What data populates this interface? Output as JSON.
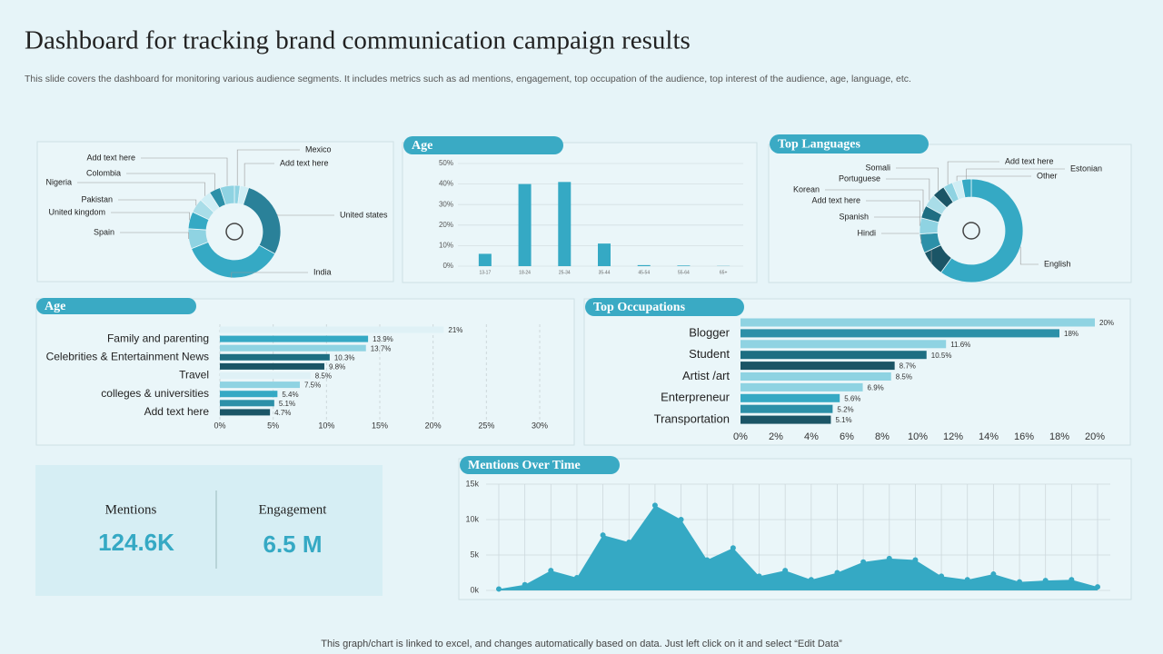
{
  "header": {
    "title": "Dashboard for tracking brand communication campaign results",
    "subtitle": "This slide covers the dashboard for monitoring various audience segments. It includes metrics such as ad mentions, engagement, top occupation of the audience, top interest of the audience, age, language, etc."
  },
  "chart_data": [
    {
      "type": "pie",
      "donut": true,
      "categories": [
        "Mexico",
        "Add text here",
        "United states",
        "India",
        "Spain",
        "United kingdom",
        "Pakistan",
        "Nigeria",
        "Colombia",
        "Add text here"
      ],
      "values": [
        2,
        3,
        28,
        36,
        7,
        6,
        5,
        4,
        4,
        5
      ],
      "colors": [
        "#8fd3e2",
        "#cfeef5",
        "#2a8199",
        "#35a9c4",
        "#8fd3e2",
        "#35a9c4",
        "#a9dde8",
        "#cfeef5",
        "#2c90a8",
        "#8fd3e2"
      ]
    },
    {
      "type": "bar",
      "title": "Age",
      "categories": [
        "13-17",
        "18-24",
        "25-34",
        "35-44",
        "45-54",
        "55-64",
        "65+"
      ],
      "values": [
        6,
        40,
        41,
        11,
        0.5,
        0.3,
        0.1
      ],
      "color": "#35a9c4",
      "ylim": [
        0,
        50
      ],
      "yticks": [
        {
          "value": 0,
          "label": "0%"
        },
        {
          "value": 10,
          "label": "10%"
        },
        {
          "value": 20,
          "label": "20%"
        },
        {
          "value": 30,
          "label": "30%"
        },
        {
          "value": 40,
          "label": "40%"
        },
        {
          "value": 50,
          "label": "50%"
        }
      ],
      "grid": true
    },
    {
      "type": "pie",
      "donut": true,
      "title": "Top Languages",
      "categories": [
        "English",
        "Hindi",
        "Spanish",
        "Add text here",
        "Korean",
        "Portuguese",
        "Somali",
        "Add text here",
        "Other",
        "Estonian"
      ],
      "values": [
        60,
        8,
        6,
        5,
        4,
        4,
        4,
        3,
        3,
        3
      ],
      "colors": [
        "#35a9c4",
        "#1b5566",
        "#2c90a8",
        "#8fd3e2",
        "#1e6e82",
        "#a9dde8",
        "#1b5566",
        "#8fd3e2",
        "#cfeef5",
        "#35a9c4"
      ]
    },
    {
      "type": "hbar",
      "title": "Age",
      "categories": [
        null,
        "Family and parenting",
        null,
        "Celebrities & Entertainment News",
        null,
        "Travel",
        null,
        "colleges & universities",
        null,
        "Add text here"
      ],
      "values": [
        21,
        13.9,
        13.7,
        10.3,
        9.8,
        8.5,
        7.5,
        5.4,
        5.1,
        4.7
      ],
      "value_labels": [
        "21%",
        "13.9%",
        "13.7%",
        "10.3%",
        "9.8%",
        "8.5%",
        "7.5%",
        "5.4%",
        "5.1%",
        "4.7%"
      ],
      "colors": [
        "#dff1f6",
        "#35a9c4",
        "#8fd3e2",
        "#1e6e82",
        "#1b5566",
        "#dff1f6",
        "#8fd3e2",
        "#35a9c4",
        "#2c90a8",
        "#1b5566"
      ],
      "xlim": [
        0,
        30
      ],
      "xticks": [
        {
          "value": 0,
          "label": "0%"
        },
        {
          "value": 5,
          "label": "5%"
        },
        {
          "value": 10,
          "label": "10%"
        },
        {
          "value": 15,
          "label": "15%"
        },
        {
          "value": 20,
          "label": "20%"
        },
        {
          "value": 25,
          "label": "25%"
        },
        {
          "value": 30,
          "label": "30%"
        }
      ],
      "grid": true
    },
    {
      "type": "hbar",
      "title": "Top Occupations",
      "categories": [
        null,
        "Blogger",
        null,
        "Student",
        null,
        "Artist /art",
        null,
        "Enterpreneur",
        null,
        "Transportation"
      ],
      "values": [
        20,
        18,
        11.6,
        10.5,
        8.7,
        8.5,
        6.9,
        5.6,
        5.2,
        5.1
      ],
      "value_labels": [
        "20%",
        "18%",
        "11.6%",
        "10.5%",
        "8.7%",
        "8.5%",
        "6.9%",
        "5.6%",
        "5.2%",
        "5.1%"
      ],
      "colors": [
        "#8fd3e2",
        "#2c90a8",
        "#8fd3e2",
        "#1e6e82",
        "#1b5566",
        "#8fd3e2",
        "#8fd3e2",
        "#35a9c4",
        "#2c90a8",
        "#1b5566"
      ],
      "xlim": [
        0,
        20
      ],
      "xticks": [
        {
          "value": 0,
          "label": "0%"
        },
        {
          "value": 2,
          "label": "2%"
        },
        {
          "value": 4,
          "label": "4%"
        },
        {
          "value": 6,
          "label": "6%"
        },
        {
          "value": 8,
          "label": "8%"
        },
        {
          "value": 10,
          "label": "10%"
        },
        {
          "value": 12,
          "label": "12%"
        },
        {
          "value": 14,
          "label": "14%"
        },
        {
          "value": 16,
          "label": "16%"
        },
        {
          "value": 18,
          "label": "18%"
        },
        {
          "value": 20,
          "label": "20%"
        }
      ],
      "grid": false
    },
    {
      "type": "area",
      "title": "Mentions Over Time",
      "values": [
        200,
        800,
        2800,
        1800,
        7800,
        6800,
        12000,
        10000,
        4300,
        6000,
        2000,
        2800,
        1500,
        2500,
        4000,
        4500,
        4300,
        2000,
        1500,
        2300,
        1200,
        1400,
        1500,
        500
      ],
      "color": "#35a9c4",
      "ylim": [
        0,
        15000
      ],
      "yticks": [
        {
          "value": 0,
          "label": "0k"
        },
        {
          "value": 5000,
          "label": "5k"
        },
        {
          "value": 10000,
          "label": "10k"
        },
        {
          "value": 15000,
          "label": "15k"
        }
      ],
      "grid": true
    }
  ],
  "kpis": [
    {
      "label": "Mentions",
      "value": "124.6K"
    },
    {
      "label": "Engagement",
      "value": "6.5 M"
    }
  ],
  "footer": "This graph/chart is linked to excel,  and changes automatically based on data. Just left click on it and select “Edit Data”"
}
